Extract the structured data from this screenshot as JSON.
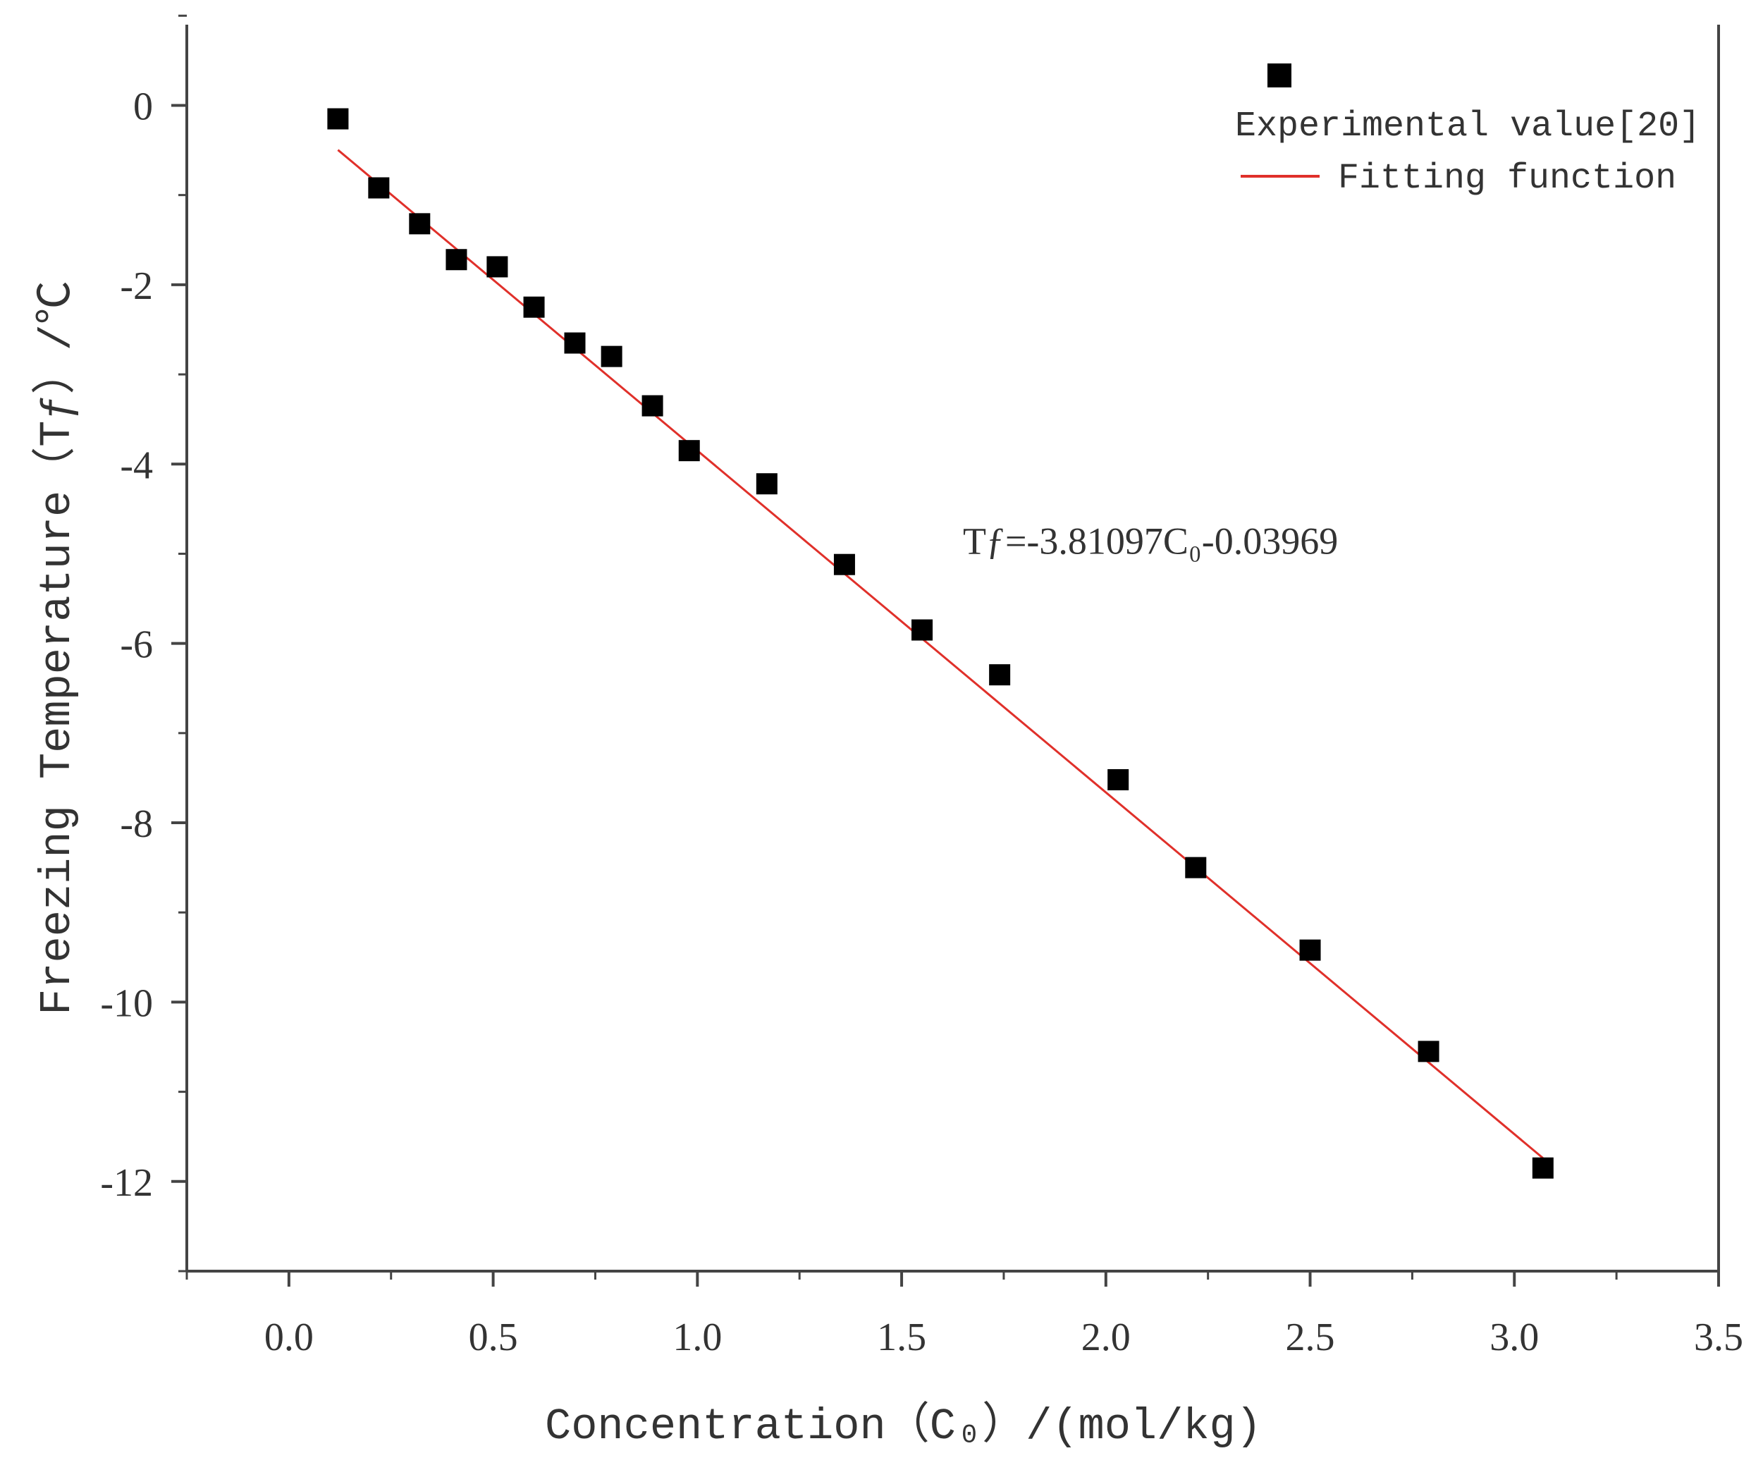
{
  "chart_data": {
    "type": "scatter",
    "xlabel": "Concentration（C₀）/(mol/kg)",
    "ylabel": "Freezing Temperature（Tƒ）/℃",
    "xlim": [
      -0.25,
      3.5
    ],
    "ylim": [
      -13,
      0.9
    ],
    "xticks": [
      "0.0",
      "0.5",
      "1.0",
      "1.5",
      "2.0",
      "2.5",
      "3.0",
      "3.5"
    ],
    "yticks": [
      "0",
      "-2",
      "-4",
      "-6",
      "-8",
      "-10",
      "-12"
    ],
    "grid": false,
    "legend_position": "top-right",
    "series": [
      {
        "name": "Experimental value[20]",
        "kind": "scatter",
        "color": "#000000",
        "x": [
          0.12,
          0.22,
          0.32,
          0.41,
          0.51,
          0.6,
          0.7,
          0.79,
          0.89,
          0.98,
          1.17,
          1.36,
          1.55,
          1.74,
          2.03,
          2.22,
          2.5,
          2.79,
          3.07
        ],
        "y": [
          -0.15,
          -0.92,
          -1.32,
          -1.72,
          -1.8,
          -2.25,
          -2.65,
          -2.8,
          -3.35,
          -3.85,
          -4.22,
          -5.12,
          -5.85,
          -6.35,
          -7.52,
          -8.5,
          -9.42,
          -10.55,
          -11.85
        ]
      },
      {
        "name": "Fitting function",
        "kind": "line",
        "color": "#e0302a",
        "x": [
          0.12,
          3.07
        ],
        "y": [
          -0.497,
          -11.739
        ]
      }
    ],
    "annotations": [
      {
        "text": "Tƒ=-3.81097C₀-0.03969",
        "x": 1.65,
        "y": -5.0
      }
    ]
  }
}
